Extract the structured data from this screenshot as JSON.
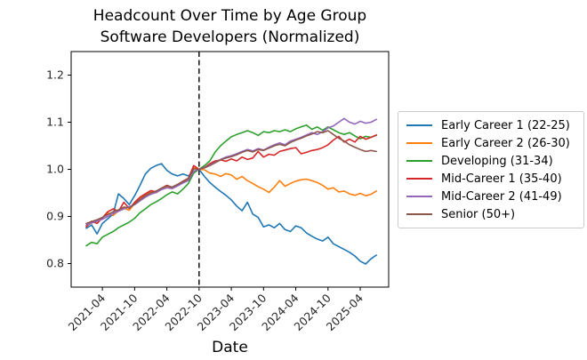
{
  "chart_data": {
    "type": "line",
    "title": "Headcount Over Time by Age Group",
    "subtitle": "Software Developers (Normalized)",
    "xlabel": "Date",
    "ylabel": "",
    "ylim": [
      0.75,
      1.25
    ],
    "yticks": [
      "0.8",
      "0.9",
      "1.0",
      "1.1",
      "1.2"
    ],
    "ytick_values": [
      0.8,
      0.9,
      1.0,
      1.1,
      1.2
    ],
    "xtick_labels": [
      "2021-04",
      "2021-10",
      "2022-04",
      "2022-10",
      "2023-04",
      "2023-10",
      "2024-04",
      "2024-10",
      "2025-04"
    ],
    "grid": false,
    "legend_position": "right of axes",
    "vline": {
      "x": "2022-10",
      "style": "dashed",
      "color": "#000000",
      "meaning": "normalization date"
    },
    "x": [
      "2021-01",
      "2021-02",
      "2021-03",
      "2021-04",
      "2021-05",
      "2021-06",
      "2021-07",
      "2021-08",
      "2021-09",
      "2021-10",
      "2021-11",
      "2021-12",
      "2022-01",
      "2022-02",
      "2022-03",
      "2022-04",
      "2022-05",
      "2022-06",
      "2022-07",
      "2022-08",
      "2022-09",
      "2022-10",
      "2022-11",
      "2022-12",
      "2023-01",
      "2023-02",
      "2023-03",
      "2023-04",
      "2023-05",
      "2023-06",
      "2023-07",
      "2023-08",
      "2023-09",
      "2023-10",
      "2023-11",
      "2023-12",
      "2024-01",
      "2024-02",
      "2024-03",
      "2024-04",
      "2024-05",
      "2024-06",
      "2024-07",
      "2024-08",
      "2024-09",
      "2024-10",
      "2024-11",
      "2024-12",
      "2025-01",
      "2025-02",
      "2025-03",
      "2025-04",
      "2025-05",
      "2025-06",
      "2025-07"
    ],
    "series": [
      {
        "name": "Early Career 1 (22-25)",
        "color": "#1f77b4",
        "values": [
          0.875,
          0.882,
          0.863,
          0.885,
          0.895,
          0.905,
          0.948,
          0.938,
          0.925,
          0.944,
          0.966,
          0.99,
          1.002,
          1.008,
          1.012,
          0.998,
          0.99,
          0.986,
          0.99,
          0.986,
          0.995,
          1.0,
          0.985,
          0.972,
          0.962,
          0.953,
          0.945,
          0.935,
          0.922,
          0.912,
          0.93,
          0.905,
          0.898,
          0.878,
          0.882,
          0.876,
          0.885,
          0.872,
          0.868,
          0.88,
          0.876,
          0.865,
          0.858,
          0.852,
          0.848,
          0.856,
          0.842,
          0.836,
          0.83,
          0.824,
          0.816,
          0.805,
          0.799,
          0.81,
          0.818
        ]
      },
      {
        "name": "Early Career 2 (26-30)",
        "color": "#ff7f0e",
        "values": [
          0.88,
          0.886,
          0.89,
          0.897,
          0.908,
          0.902,
          0.912,
          0.918,
          0.913,
          0.928,
          0.94,
          0.946,
          0.952,
          0.95,
          0.958,
          0.964,
          0.96,
          0.966,
          0.972,
          0.977,
          1.004,
          1.0,
          0.999,
          0.992,
          0.99,
          0.985,
          0.991,
          0.988,
          0.979,
          0.985,
          0.976,
          0.97,
          0.963,
          0.958,
          0.951,
          0.962,
          0.976,
          0.964,
          0.97,
          0.975,
          0.978,
          0.979,
          0.976,
          0.972,
          0.966,
          0.958,
          0.961,
          0.952,
          0.954,
          0.948,
          0.945,
          0.949,
          0.944,
          0.947,
          0.954
        ]
      },
      {
        "name": "Developing (31-34)",
        "color": "#2ca02c",
        "values": [
          0.838,
          0.845,
          0.842,
          0.856,
          0.862,
          0.868,
          0.876,
          0.882,
          0.888,
          0.896,
          0.908,
          0.916,
          0.925,
          0.931,
          0.938,
          0.946,
          0.952,
          0.948,
          0.958,
          0.97,
          0.992,
          1.0,
          1.008,
          1.018,
          1.037,
          1.05,
          1.06,
          1.069,
          1.074,
          1.078,
          1.082,
          1.078,
          1.072,
          1.08,
          1.078,
          1.082,
          1.08,
          1.084,
          1.08,
          1.086,
          1.09,
          1.094,
          1.085,
          1.09,
          1.083,
          1.09,
          1.084,
          1.078,
          1.074,
          1.078,
          1.071,
          1.065,
          1.07,
          1.068,
          1.072
        ]
      },
      {
        "name": "Mid-Career 1 (35-40)",
        "color": "#d62728",
        "values": [
          0.878,
          0.89,
          0.885,
          0.897,
          0.91,
          0.916,
          0.911,
          0.93,
          0.917,
          0.93,
          0.941,
          0.948,
          0.955,
          0.952,
          0.96,
          0.966,
          0.962,
          0.968,
          0.975,
          0.981,
          1.008,
          1.0,
          1.004,
          1.012,
          1.018,
          1.02,
          1.017,
          1.022,
          1.018,
          1.026,
          1.021,
          1.024,
          1.038,
          1.026,
          1.032,
          1.03,
          1.038,
          1.041,
          1.044,
          1.046,
          1.033,
          1.036,
          1.04,
          1.042,
          1.046,
          1.052,
          1.062,
          1.07,
          1.058,
          1.064,
          1.058,
          1.07,
          1.064,
          1.068,
          1.073
        ]
      },
      {
        "name": "Mid-Career 2 (41-49)",
        "color": "#9467bd",
        "values": [
          0.882,
          0.886,
          0.89,
          0.894,
          0.9,
          0.906,
          0.911,
          0.916,
          0.921,
          0.925,
          0.933,
          0.941,
          0.947,
          0.951,
          0.957,
          0.961,
          0.959,
          0.965,
          0.971,
          0.976,
          0.996,
          1.0,
          1.004,
          1.009,
          1.015,
          1.021,
          1.026,
          1.029,
          1.033,
          1.038,
          1.042,
          1.039,
          1.044,
          1.041,
          1.047,
          1.052,
          1.056,
          1.052,
          1.06,
          1.064,
          1.068,
          1.073,
          1.078,
          1.074,
          1.08,
          1.088,
          1.092,
          1.1,
          1.108,
          1.1,
          1.096,
          1.102,
          1.098,
          1.1,
          1.106
        ]
      },
      {
        "name": "Senior (50+)",
        "color": "#8c564b",
        "values": [
          0.885,
          0.889,
          0.893,
          0.898,
          0.904,
          0.91,
          0.914,
          0.92,
          0.918,
          0.926,
          0.936,
          0.944,
          0.95,
          0.954,
          0.96,
          0.965,
          0.962,
          0.968,
          0.974,
          0.98,
          1.001,
          1.0,
          1.003,
          1.008,
          1.014,
          1.02,
          1.024,
          1.027,
          1.031,
          1.036,
          1.04,
          1.037,
          1.042,
          1.04,
          1.045,
          1.05,
          1.053,
          1.05,
          1.057,
          1.062,
          1.066,
          1.071,
          1.075,
          1.08,
          1.078,
          1.082,
          1.074,
          1.066,
          1.06,
          1.052,
          1.047,
          1.042,
          1.038,
          1.04,
          1.038
        ]
      }
    ],
    "colors": {
      "axis": "#000000",
      "tick_label": "#262626",
      "legend_border": "#cbcbcb",
      "background": "#ffffff"
    }
  }
}
